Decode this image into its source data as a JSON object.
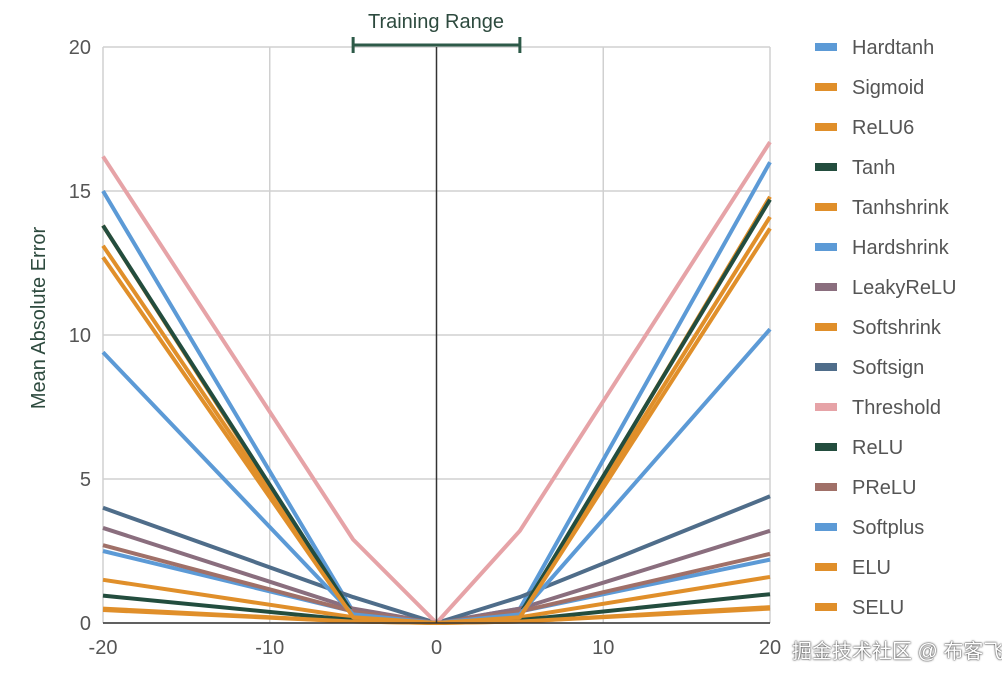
{
  "chart_data": {
    "type": "line",
    "title": "",
    "xlabel": "",
    "ylabel": "Mean Absolute Error",
    "xlim": [
      -20,
      20
    ],
    "ylim": [
      0,
      20
    ],
    "xticks": [
      "-20",
      "-10",
      "0",
      "10",
      "20"
    ],
    "yticks": [
      "0",
      "5",
      "10",
      "15",
      "20"
    ],
    "grid": true,
    "legend_position": "right",
    "annotation": {
      "label": "Training Range",
      "range": [
        -5,
        5
      ]
    },
    "x": [
      -20,
      -5,
      0,
      5,
      20
    ],
    "series": [
      {
        "name": "Hardtanh",
        "color": "#5c9ad6",
        "values": [
          2.5,
          0.4,
          0,
          0.4,
          2.2
        ]
      },
      {
        "name": "Sigmoid",
        "color": "#e08f2a",
        "values": [
          1.5,
          0.2,
          0,
          0.2,
          1.6
        ]
      },
      {
        "name": "ReLU6",
        "color": "#e08f2a",
        "values": [
          0.45,
          0.05,
          0,
          0.05,
          0.5
        ]
      },
      {
        "name": "Tanh",
        "color": "#234d3e",
        "values": [
          0.95,
          0.1,
          0,
          0.1,
          1.0
        ]
      },
      {
        "name": "Tanhshrink",
        "color": "#e08f2a",
        "values": [
          13.1,
          0.3,
          0,
          0.3,
          14.1
        ]
      },
      {
        "name": "Hardshrink",
        "color": "#5c9ad6",
        "values": [
          15.0,
          0.4,
          0,
          0.5,
          16.0
        ]
      },
      {
        "name": "LeakyReLU",
        "color": "#8a6e7e",
        "values": [
          3.3,
          0.5,
          0,
          0.5,
          3.2
        ]
      },
      {
        "name": "Softshrink",
        "color": "#e08f2a",
        "values": [
          13.8,
          0.2,
          0,
          0.2,
          14.8
        ]
      },
      {
        "name": "Softsign",
        "color": "#4f6d8a",
        "values": [
          4.0,
          0.9,
          0,
          0.9,
          4.4
        ]
      },
      {
        "name": "Threshold",
        "color": "#e6a3a7",
        "values": [
          16.2,
          2.9,
          0,
          3.2,
          16.7
        ]
      },
      {
        "name": "ReLU",
        "color": "#234d3e",
        "values": [
          13.8,
          0.3,
          0,
          0.3,
          14.7
        ]
      },
      {
        "name": "PReLU",
        "color": "#a07068",
        "values": [
          2.7,
          0.4,
          0,
          0.4,
          2.4
        ]
      },
      {
        "name": "Softplus",
        "color": "#5c9ad6",
        "values": [
          9.4,
          0.3,
          0,
          0.3,
          10.2
        ]
      },
      {
        "name": "ELU",
        "color": "#e08f2a",
        "values": [
          12.7,
          0.2,
          0,
          0.2,
          13.7
        ]
      },
      {
        "name": "SELU",
        "color": "#e08f2a",
        "values": [
          0.5,
          0.05,
          0,
          0.05,
          0.55
        ]
      }
    ]
  },
  "watermark": "掘金技术社区 @ 布客飞龙"
}
